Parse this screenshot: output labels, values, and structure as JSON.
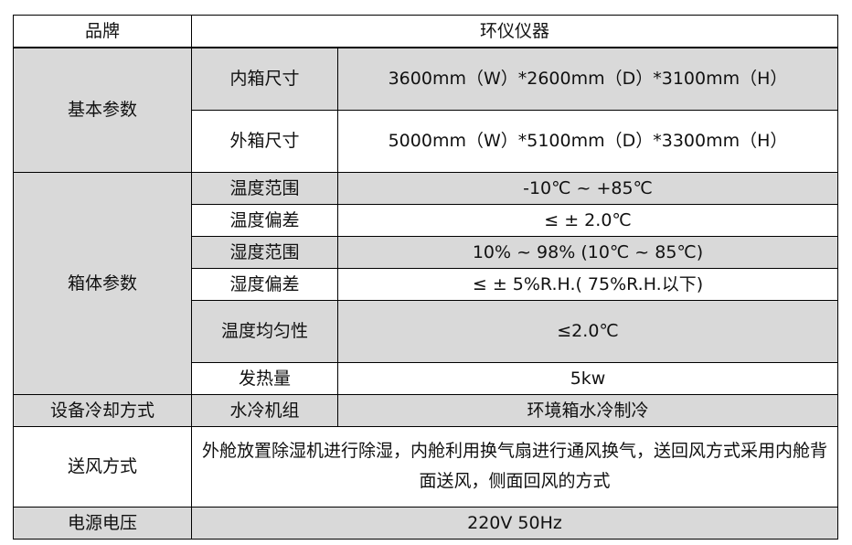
{
  "brand": {
    "label": "品牌",
    "value": "环仪仪器"
  },
  "basic": {
    "label": "基本参数",
    "rows": [
      {
        "label": "内箱尺寸",
        "value": "3600mm（W）*2600mm（D）*3100mm（H）"
      },
      {
        "label": "外箱尺寸",
        "value": "5000mm（W）*5100mm（D）*3300mm（H）"
      }
    ]
  },
  "box": {
    "label": "箱体参数",
    "rows": [
      {
        "label": "温度范围",
        "value": "-10℃ ~ +85℃"
      },
      {
        "label": "温度偏差",
        "value": "≤ ± 2.0℃"
      },
      {
        "label": "湿度范围",
        "value": "10% ~ 98% (10℃ ~ 85℃)"
      },
      {
        "label": "湿度偏差",
        "value": "≤ ± 5%R.H.( 75%R.H.以下)"
      },
      {
        "label": "温度均匀性",
        "value": "≤2.0℃"
      },
      {
        "label": "发热量",
        "value": "5kw"
      }
    ]
  },
  "cooling": {
    "label": "设备冷却方式",
    "sub": "水冷机组",
    "value": "环境箱水冷制冷"
  },
  "air": {
    "label": "送风方式",
    "value": "外舱放置除湿机进行除湿，内舱利用换气扇进行通风换气，送回风方式采用内舱背面送风，侧面回风的方式"
  },
  "power": {
    "label": "电源电压",
    "value": "220V 50Hz"
  }
}
